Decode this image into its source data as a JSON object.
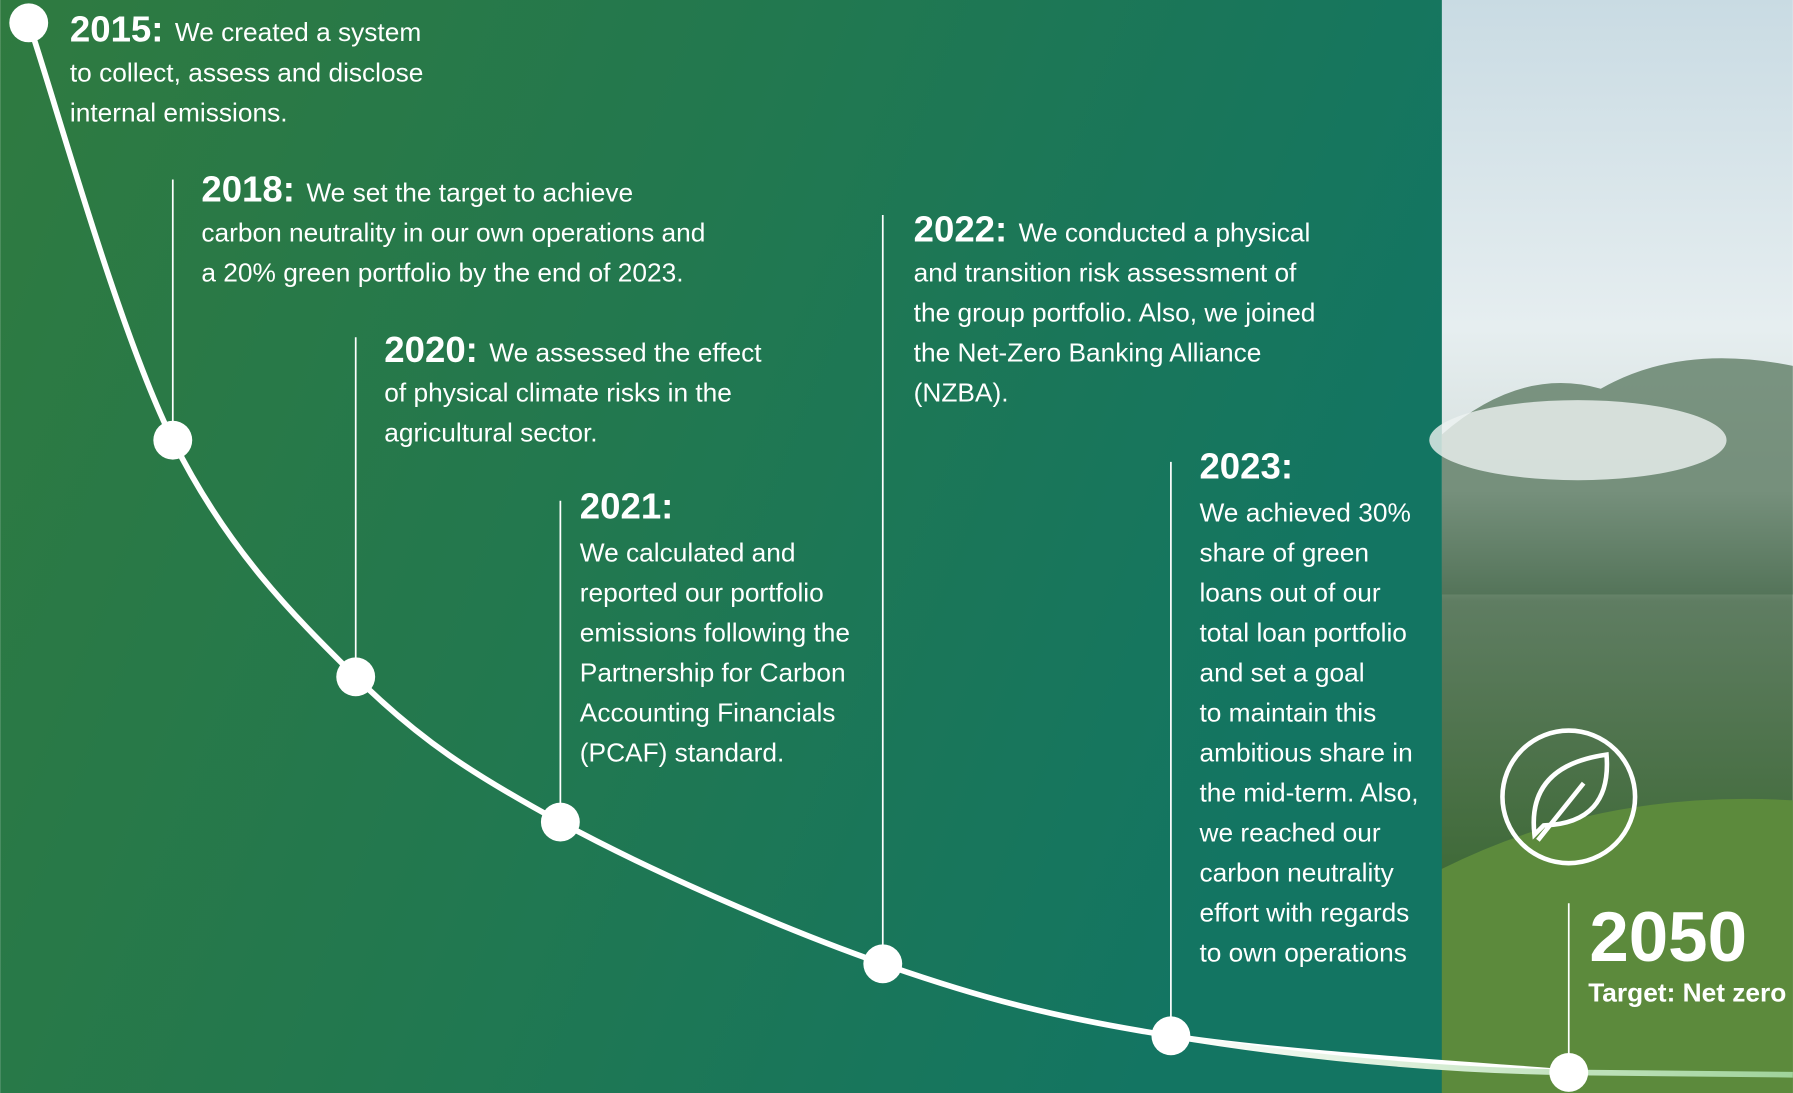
{
  "milestones": [
    {
      "year": "2015:",
      "lines": [
        "We created a system",
        "to collect, assess and disclose",
        "internal emissions."
      ]
    },
    {
      "year": "2018:",
      "lines": [
        "We set the target to achieve",
        "carbon neutrality in our own operations and",
        "a 20% green portfolio by the end of 2023."
      ]
    },
    {
      "year": "2020:",
      "lines": [
        "We assessed the effect",
        "of physical climate risks in the",
        "agricultural sector."
      ]
    },
    {
      "year": "2021:",
      "lines": [
        "We calculated and",
        "reported our portfolio",
        "emissions following the",
        "Partnership for Carbon",
        "Accounting Financials",
        "(PCAF) standard."
      ]
    },
    {
      "year": "2022:",
      "lines": [
        "We conducted a physical",
        "and transition risk assessment of",
        "the group portfolio. Also, we joined",
        "the Net-Zero Banking Alliance",
        "(NZBA)."
      ]
    },
    {
      "year": "2023:",
      "lines": [
        "We achieved 30%",
        "share of green",
        "loans out of our",
        "total loan portfolio",
        "and set a goal",
        "to maintain this",
        "ambitious share in",
        "the mid-term. Also,",
        "we reached our",
        "carbon neutrality",
        "effort with regards",
        "to own operations"
      ]
    }
  ],
  "target": {
    "year": "2050",
    "label": "Target: Net zero"
  }
}
